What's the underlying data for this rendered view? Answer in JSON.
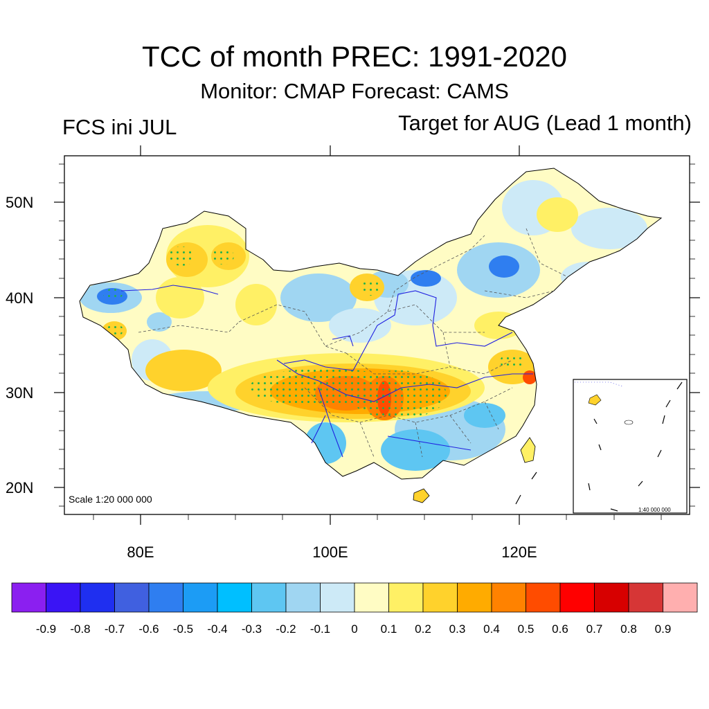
{
  "title": "TCC of month PREC: 1991-2020",
  "subtitle": "Monitor: CMAP   Forecast: CAMS",
  "left_note": "FCS ini JUL",
  "right_note": "Target for AUG (Lead 1 month)",
  "main_scale": "Scale 1:20 000 000",
  "inset_scale": "1:40 000 000",
  "lat_labels": [
    "50N",
    "40N",
    "30N",
    "20N"
  ],
  "lon_labels": [
    "80E",
    "100E",
    "120E"
  ],
  "colorbar": {
    "colors": [
      "#8b1ff0",
      "#3a14f5",
      "#1f2ff0",
      "#4060e0",
      "#2f7ef0",
      "#1c9cf5",
      "#00bfff",
      "#5ec6f2",
      "#a0d6f2",
      "#cdeaf7",
      "#fffcc4",
      "#fff065",
      "#ffd22c",
      "#ffab00",
      "#ff8200",
      "#ff4c00",
      "#ff0000",
      "#d70000",
      "#d63636",
      "#ffafaf"
    ],
    "labels": [
      "-0.9",
      "-0.8",
      "-0.7",
      "-0.6",
      "-0.5",
      "-0.4",
      "-0.3",
      "-0.2",
      "-0.1",
      "0",
      "0.1",
      "0.2",
      "0.3",
      "0.4",
      "0.5",
      "0.6",
      "0.7",
      "0.8",
      "0.9"
    ]
  }
}
